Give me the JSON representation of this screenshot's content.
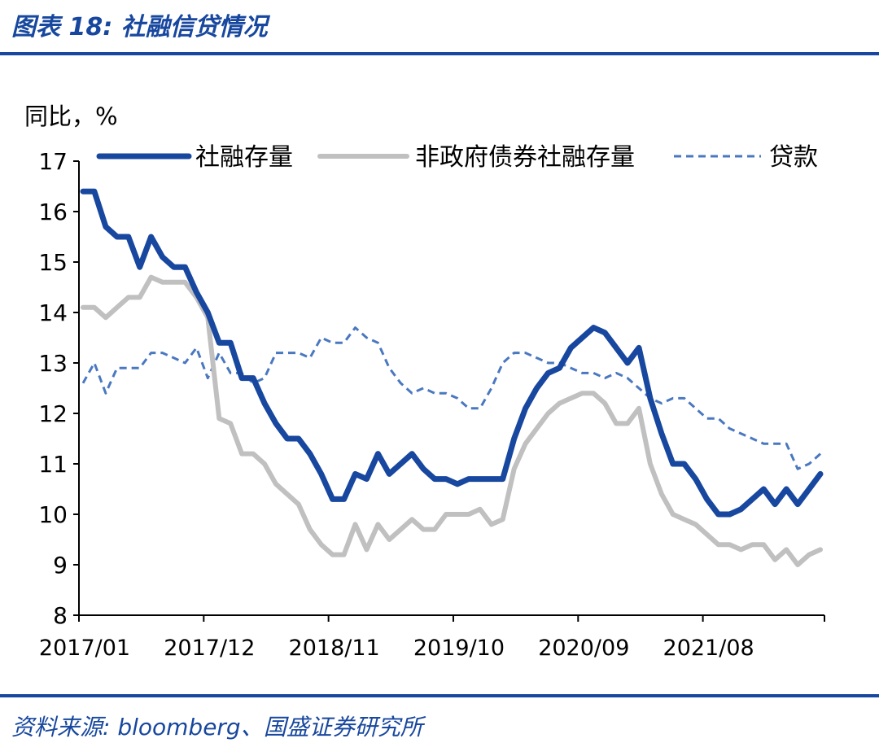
{
  "page": {
    "title": "图表 18:  社融信贷情况",
    "source": "资料来源:  bloomberg、国盛证券研究所"
  },
  "chart_data": {
    "type": "line",
    "ylabel": "同比，%",
    "ylim": [
      8,
      17
    ],
    "yticks": [
      8,
      9,
      10,
      11,
      12,
      13,
      14,
      15,
      16,
      17
    ],
    "x_tick_labels": [
      "2017/01",
      "2017/12",
      "2018/11",
      "2019/10",
      "2020/09",
      "2021/08"
    ],
    "x_start": "2017/01",
    "x_end": "2022/06",
    "legend_position": "top",
    "series": [
      {
        "name": "社融存量",
        "color": "#17479e",
        "style": "solid",
        "values": [
          16.4,
          16.4,
          15.7,
          15.5,
          15.5,
          14.9,
          15.5,
          15.1,
          14.9,
          14.9,
          14.4,
          14.0,
          13.4,
          13.4,
          12.7,
          12.7,
          12.2,
          11.8,
          11.5,
          11.5,
          11.2,
          10.8,
          10.3,
          10.3,
          10.8,
          10.7,
          11.2,
          10.8,
          11.0,
          11.2,
          10.9,
          10.7,
          10.7,
          10.6,
          10.7,
          10.7,
          10.7,
          10.7,
          11.5,
          12.1,
          12.5,
          12.8,
          12.9,
          13.3,
          13.5,
          13.7,
          13.6,
          13.3,
          13.0,
          13.3,
          12.3,
          11.6,
          11.0,
          11.0,
          10.7,
          10.3,
          10.0,
          10.0,
          10.1,
          10.3,
          10.5,
          10.2,
          10.5,
          10.2,
          10.5,
          10.8
        ]
      },
      {
        "name": "非政府债券社融存量",
        "color": "#c0c0c0",
        "style": "solid",
        "values": [
          14.1,
          14.1,
          13.9,
          14.1,
          14.3,
          14.3,
          14.7,
          14.6,
          14.6,
          14.6,
          14.3,
          13.9,
          11.9,
          11.8,
          11.2,
          11.2,
          11.0,
          10.6,
          10.4,
          10.2,
          9.7,
          9.4,
          9.2,
          9.2,
          9.8,
          9.3,
          9.8,
          9.5,
          9.7,
          9.9,
          9.7,
          9.7,
          10.0,
          10.0,
          10.0,
          10.1,
          9.8,
          9.9,
          10.9,
          11.4,
          11.7,
          12.0,
          12.2,
          12.3,
          12.4,
          12.4,
          12.2,
          11.8,
          11.8,
          12.1,
          11.0,
          10.4,
          10.0,
          9.9,
          9.8,
          9.6,
          9.4,
          9.4,
          9.3,
          9.4,
          9.4,
          9.1,
          9.3,
          9.0,
          9.2,
          9.3
        ]
      },
      {
        "name": "贷款",
        "color": "#4a78c0",
        "style": "dashed",
        "values": [
          12.6,
          13.0,
          12.4,
          12.9,
          12.9,
          12.9,
          13.2,
          13.2,
          13.1,
          13.0,
          13.3,
          12.7,
          13.2,
          12.8,
          12.8,
          12.6,
          12.7,
          13.2,
          13.2,
          13.2,
          13.1,
          13.5,
          13.4,
          13.4,
          13.7,
          13.5,
          13.4,
          12.9,
          12.6,
          12.4,
          12.5,
          12.4,
          12.4,
          12.3,
          12.1,
          12.1,
          12.5,
          13.0,
          13.2,
          13.2,
          13.1,
          13.0,
          13.0,
          12.9,
          12.8,
          12.8,
          12.7,
          12.8,
          12.7,
          12.5,
          12.3,
          12.2,
          12.3,
          12.3,
          12.1,
          11.9,
          11.9,
          11.7,
          11.6,
          11.5,
          11.4,
          11.4,
          11.4,
          10.9,
          11.0,
          11.2
        ]
      }
    ]
  },
  "colors": {
    "brand_blue": "#17479e",
    "gray": "#c0c0c0",
    "dashed_blue": "#4a78c0",
    "axis": "#000000"
  }
}
